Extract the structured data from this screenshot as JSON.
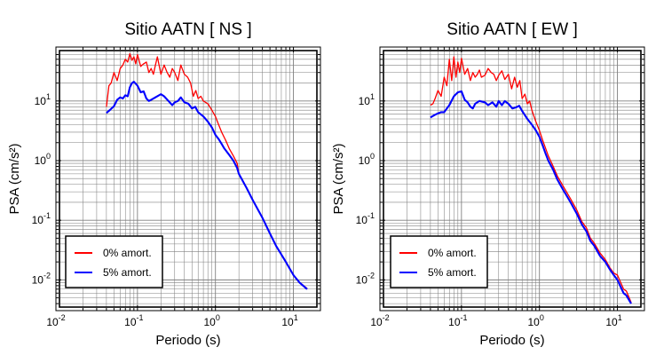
{
  "chart_data": [
    {
      "type": "line",
      "title": "Sitio AATN [ NS ]",
      "xlabel": "Periodo (s)",
      "ylabel": "PSA (cm/s²)",
      "xscale": "log",
      "yscale": "log",
      "xlim": [
        0.01,
        20
      ],
      "ylim": [
        0.0035,
        70
      ],
      "grid": true,
      "legend_position": "bottom-left",
      "xticks": [
        {
          "base": "10",
          "exp": "-2"
        },
        {
          "base": "10",
          "exp": "-1"
        },
        {
          "base": "10",
          "exp": "0"
        },
        {
          "base": "10",
          "exp": "1"
        }
      ],
      "yticks": [
        {
          "base": "10",
          "exp": "-2"
        },
        {
          "base": "10",
          "exp": "-1"
        },
        {
          "base": "10",
          "exp": "0"
        },
        {
          "base": "10",
          "exp": "1"
        }
      ],
      "series": [
        {
          "name": "0% amort.",
          "color": "#ff0000",
          "x": [
            0.04,
            0.043,
            0.046,
            0.05,
            0.055,
            0.06,
            0.065,
            0.07,
            0.075,
            0.08,
            0.085,
            0.09,
            0.095,
            0.1,
            0.11,
            0.12,
            0.13,
            0.14,
            0.15,
            0.16,
            0.17,
            0.18,
            0.2,
            0.22,
            0.24,
            0.26,
            0.28,
            0.3,
            0.33,
            0.36,
            0.4,
            0.44,
            0.48,
            0.52,
            0.56,
            0.6,
            0.65,
            0.7,
            0.8,
            0.9,
            1.0,
            1.1,
            1.2,
            1.35,
            1.5,
            1.7,
            1.9,
            2.0,
            2.5,
            3,
            4,
            5,
            6,
            8,
            10,
            12,
            15
          ],
          "y": [
            8,
            18,
            20,
            30,
            22,
            35,
            40,
            50,
            45,
            62,
            48,
            55,
            42,
            60,
            38,
            42,
            45,
            30,
            35,
            28,
            40,
            55,
            28,
            40,
            30,
            25,
            35,
            30,
            22,
            40,
            28,
            25,
            20,
            12,
            15,
            11,
            12,
            10,
            9,
            7,
            5.5,
            4,
            3,
            2.2,
            1.6,
            1.2,
            0.9,
            0.6,
            0.35,
            0.22,
            0.11,
            0.06,
            0.037,
            0.02,
            0.012,
            0.009,
            0.0072
          ]
        },
        {
          "name": "5% amort.",
          "color": "#0000ff",
          "x": [
            0.04,
            0.045,
            0.05,
            0.055,
            0.06,
            0.065,
            0.07,
            0.075,
            0.08,
            0.085,
            0.09,
            0.1,
            0.11,
            0.12,
            0.13,
            0.14,
            0.15,
            0.17,
            0.2,
            0.22,
            0.25,
            0.28,
            0.3,
            0.33,
            0.36,
            0.4,
            0.45,
            0.5,
            0.55,
            0.6,
            0.7,
            0.8,
            0.9,
            1.0,
            1.1,
            1.2,
            1.3,
            1.5,
            1.7,
            1.9,
            2.0,
            2.5,
            3,
            4,
            5,
            6,
            8,
            10,
            12,
            15
          ],
          "y": [
            6.3,
            7.2,
            8.2,
            10.5,
            11.5,
            11,
            12.5,
            12,
            17,
            20,
            21,
            18,
            14,
            14.5,
            11,
            10,
            10.5,
            11.5,
            13,
            12,
            10,
            8.5,
            9.5,
            10,
            11.5,
            9.5,
            9,
            7.5,
            8,
            6.5,
            5.5,
            4.5,
            3.6,
            2.7,
            2.3,
            1.9,
            1.6,
            1.25,
            1,
            0.75,
            0.6,
            0.35,
            0.22,
            0.11,
            0.06,
            0.037,
            0.02,
            0.012,
            0.009,
            0.007
          ]
        }
      ]
    },
    {
      "type": "line",
      "title": "Sitio AATN [ EW ]",
      "xlabel": "Periodo (s)",
      "ylabel": "PSA (cm/s²)",
      "xscale": "log",
      "yscale": "log",
      "xlim": [
        0.01,
        20
      ],
      "ylim": [
        0.0035,
        70
      ],
      "grid": true,
      "legend_position": "bottom-left",
      "xticks": [
        {
          "base": "10",
          "exp": "-2"
        },
        {
          "base": "10",
          "exp": "-1"
        },
        {
          "base": "10",
          "exp": "0"
        },
        {
          "base": "10",
          "exp": "1"
        }
      ],
      "yticks": [
        {
          "base": "10",
          "exp": "-2"
        },
        {
          "base": "10",
          "exp": "-1"
        },
        {
          "base": "10",
          "exp": "0"
        },
        {
          "base": "10",
          "exp": "1"
        }
      ],
      "series": [
        {
          "name": "0% amort.",
          "color": "#ff0000",
          "x": [
            0.04,
            0.043,
            0.046,
            0.05,
            0.055,
            0.06,
            0.065,
            0.07,
            0.075,
            0.08,
            0.085,
            0.09,
            0.095,
            0.1,
            0.11,
            0.12,
            0.13,
            0.14,
            0.15,
            0.16,
            0.17,
            0.18,
            0.2,
            0.22,
            0.24,
            0.26,
            0.28,
            0.3,
            0.33,
            0.36,
            0.4,
            0.44,
            0.48,
            0.52,
            0.56,
            0.6,
            0.65,
            0.7,
            0.75,
            0.8,
            0.9,
            1.0,
            1.1,
            1.2,
            1.3,
            1.5,
            1.7,
            2.0,
            2.5,
            3,
            3.5,
            4,
            4.5,
            5,
            6,
            7,
            8,
            9,
            10,
            12,
            13,
            15
          ],
          "y": [
            8.5,
            9,
            11,
            15,
            12,
            25,
            18,
            50,
            22,
            55,
            25,
            45,
            30,
            52,
            28,
            35,
            22,
            30,
            25,
            28,
            33,
            25,
            27,
            35,
            30,
            28,
            22,
            27,
            32,
            23,
            28,
            16,
            25,
            17,
            22,
            11,
            13,
            9,
            10,
            7,
            4.5,
            3.2,
            2.2,
            1.6,
            1.2,
            0.8,
            0.55,
            0.38,
            0.23,
            0.15,
            0.095,
            0.075,
            0.05,
            0.042,
            0.028,
            0.022,
            0.016,
            0.013,
            0.012,
            0.007,
            0.0065,
            0.0042
          ]
        },
        {
          "name": "5% amort.",
          "color": "#0000ff",
          "x": [
            0.04,
            0.045,
            0.05,
            0.055,
            0.06,
            0.065,
            0.07,
            0.08,
            0.09,
            0.1,
            0.11,
            0.12,
            0.13,
            0.14,
            0.15,
            0.17,
            0.2,
            0.22,
            0.25,
            0.28,
            0.3,
            0.33,
            0.36,
            0.4,
            0.45,
            0.5,
            0.55,
            0.6,
            0.7,
            0.8,
            0.9,
            1.0,
            1.1,
            1.2,
            1.3,
            1.5,
            1.7,
            2.0,
            2.5,
            3,
            3.5,
            4,
            4.5,
            5,
            6,
            7,
            8,
            9,
            10,
            12,
            13,
            15
          ],
          "y": [
            5.3,
            5.8,
            6.2,
            6.5,
            6.5,
            7.5,
            8.5,
            12,
            14,
            14.5,
            10.5,
            9.5,
            8,
            7.5,
            9,
            10,
            9.5,
            8.5,
            9.5,
            8,
            10,
            8.5,
            10,
            9,
            7.5,
            7.8,
            8.3,
            6.8,
            5,
            4,
            3.2,
            2.5,
            1.8,
            1.3,
            1.0,
            0.7,
            0.48,
            0.33,
            0.2,
            0.13,
            0.085,
            0.065,
            0.045,
            0.038,
            0.025,
            0.02,
            0.015,
            0.012,
            0.01,
            0.006,
            0.0055,
            0.004
          ]
        }
      ]
    }
  ]
}
